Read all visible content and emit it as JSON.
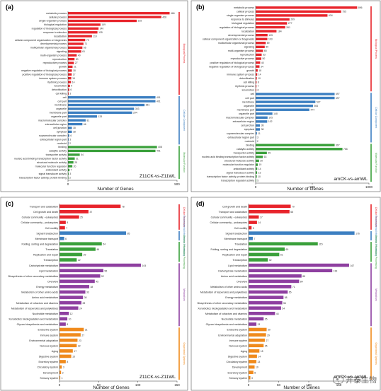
{
  "chart_data": [
    {
      "type": "bar",
      "orientation": "horizontal",
      "panel_label": "(a)",
      "comparison": "Z11CK-vs-Z11WL",
      "xlabel": "Number of Genes",
      "xlim": [
        0,
        500
      ],
      "xticks": [
        0,
        500
      ],
      "groups": [
        {
          "name": "Biological Process",
          "color": "#e8242b",
          "categories": [
            "metabolic process",
            "cellular process",
            "single-organism process",
            "biological regulation",
            "regulation of biological process",
            "response to stimulus",
            "localization",
            "cellular component organization or biogenesis",
            "developmental process",
            "multicellular organismal process",
            "signaling",
            "multi-organism process",
            "reproduction",
            "reproductive process",
            "growth",
            "negative regulation of biological process",
            "positive regulation of biological process",
            "immune system process",
            "rhythmic process",
            "locomotion",
            "detoxification",
            "cell killing"
          ],
          "values": [
            466,
            428,
            315,
            149,
            140,
            135,
            110,
            79,
            71,
            66,
            61,
            40,
            30,
            27,
            21,
            18,
            17,
            15,
            14,
            9,
            6,
            3
          ]
        },
        {
          "name": "Cellular Component",
          "color": "#3c7fc1",
          "categories": [
            "cell",
            "cell part",
            "membrane",
            "organelle",
            "membrane part",
            "organelle part",
            "macromolecular complex",
            "extracellular region",
            "cell junction",
            "symplast",
            "supramolecular complex",
            "extracellular region part",
            "nucleoid"
          ],
          "values": [
            401,
            401,
            351,
            303,
            294,
            133,
            81,
            66,
            18,
            18,
            6,
            3,
            2
          ]
        },
        {
          "name": "Molecular Function",
          "color": "#3aa03b",
          "categories": [
            "binding",
            "catalytic activity",
            "transporter activity",
            "nucleic acid binding transcription factor activity",
            "structural molecule activity",
            "molecular function regulator",
            "antioxidant activity",
            "signal transducer activity",
            "transcription factor activity, protein binding"
          ],
          "values": [
            408,
            401,
            54,
            31,
            25,
            20,
            7,
            3,
            2
          ]
        }
      ]
    },
    {
      "type": "bar",
      "orientation": "horizontal",
      "panel_label": "(b)",
      "comparison": "amCK-vs-amWL",
      "xlabel": "Number of Genes",
      "xlim": [
        0,
        1000
      ],
      "xticks": [
        0,
        500,
        1000
      ],
      "groups": [
        {
          "name": "Biological Process",
          "color": "#e8242b",
          "categories": [
            "metabolic process",
            "cellular process",
            "single-organism process",
            "response to stimulus",
            "biological regulation",
            "regulation of biological process",
            "localization",
            "developmental process",
            "cellular component organization or biogenesis",
            "multicellular organismal process",
            "signaling",
            "multi-organism process",
            "reproduction",
            "reproductive process",
            "positive regulation of biological process",
            "negative regulation of biological process",
            "growth",
            "immune system process",
            "detoxification",
            "cell killing",
            "rhythmic process",
            "locomotion"
          ],
          "values": [
            896,
            755,
            634,
            299,
            277,
            261,
            184,
            105,
            103,
            89,
            80,
            65,
            53,
            50,
            40,
            34,
            18,
            14,
            10,
            8,
            7,
            6
          ]
        },
        {
          "name": "Cellular Component",
          "color": "#3c7fc1",
          "categories": [
            "cell",
            "cell part",
            "membrane",
            "organelle",
            "membrane part",
            "organelle part",
            "macromolecular complex",
            "extracellular region",
            "cell junction",
            "symplast",
            "supramolecular complex",
            "extracellular region part",
            "nucleoid"
          ],
          "values": [
            697,
            697,
            527,
            506,
            474,
            148,
            105,
            102,
            38,
            38,
            11,
            3,
            2
          ]
        },
        {
          "name": "Molecular Function",
          "color": "#3aa03b",
          "categories": [
            "binding",
            "catalytic activity",
            "transporter activity",
            "nucleic acid binding transcription factor activity",
            "structural molecule activity",
            "molecular function regulator",
            "antioxidant activity",
            "signal transducer activity",
            "transcription factor activity, protein binding",
            "transcription regulator activity"
          ],
          "values": [
            697,
            766,
            99,
            63,
            30,
            19,
            14,
            13,
            10,
            5
          ]
        }
      ]
    },
    {
      "type": "bar",
      "orientation": "horizontal",
      "panel_label": "(c)",
      "comparison": "Z11CK-vs-Z11WL",
      "xlabel": "Number of Genes",
      "xlim": [
        0,
        150
      ],
      "xticks": [
        0,
        50,
        100,
        150
      ],
      "groups": [
        {
          "name": "Cellular Processes",
          "color": "#e8242b",
          "categories": [
            "Transport and catabolism",
            "Cell growth and death",
            "Cellular community - eukaryotes",
            "Cellular community - prokaryotes",
            "Cell motility"
          ],
          "values": [
            78,
            37,
            25,
            8,
            7
          ]
        },
        {
          "name": "Environmental Information Processing",
          "color": "#3c7fc1",
          "categories": [
            "Signal transduction",
            "Membrane transport"
          ],
          "values": [
            85,
            6
          ]
        },
        {
          "name": "Genetic Information Processing",
          "color": "#3aa03b",
          "categories": [
            "Folding, sorting and degradation",
            "Translation",
            "Replication and repair",
            "Transcription"
          ],
          "values": [
            54,
            46,
            29,
            22
          ]
        },
        {
          "name": "Metabolism",
          "color": "#8e3fa0",
          "categories": [
            "Carbohydrate metabolism",
            "Lipid metabolism",
            "Biosynthesis of other secondary metabolites",
            "Overview",
            "Energy metabolism",
            "Metabolism of other amino acids",
            "Amino acid metabolism",
            "Metabolism of cofactors and vitamins",
            "Metabolism of terpenoids and polyketides",
            "Nucleotide metabolism",
            "Xenobiotics biodegradation and metabolism",
            "Glycan biosynthesis and metabolism"
          ],
          "values": [
            104,
            56,
            52,
            45,
            38,
            33,
            30,
            28,
            24,
            12,
            10,
            8
          ]
        },
        {
          "name": "Organismal Systems",
          "color": "#f08a1c",
          "categories": [
            "Endocrine system",
            "Immune system",
            "Environmental adaptation",
            "Nervous system",
            "Aging",
            "Digestive system",
            "Excretory system",
            "Circulatory system",
            "Development",
            "Sensory system"
          ],
          "values": [
            31,
            27,
            23,
            22,
            17,
            15,
            8,
            3,
            2,
            1
          ]
        }
      ]
    },
    {
      "type": "bar",
      "orientation": "horizontal",
      "panel_label": "(d)",
      "comparison": "amCK-vs-amWL",
      "xlabel": "Number of Genes",
      "xlim": [
        0,
        200
      ],
      "xticks": [
        0,
        50,
        100,
        150
      ],
      "groups": [
        {
          "name": "Cellular Processes",
          "color": "#e8242b",
          "categories": [
            "Cell growth and death",
            "Transport and catabolism",
            "Cellular community - eukaryotes",
            "Cellular community - prokaryotes",
            "Cell motility"
          ],
          "values": [
            70,
            68,
            17,
            14,
            5
          ]
        },
        {
          "name": "Environmental Information Processing",
          "color": "#3c7fc1",
          "categories": [
            "Signal transduction",
            "Membrane transport"
          ],
          "values": [
            176,
            7
          ]
        },
        {
          "name": "Genetic Information Processing",
          "color": "#3aa03b",
          "categories": [
            "Translation",
            "Folding, sorting and degradation",
            "Replication and repair",
            "Transcription"
          ],
          "values": [
            115,
            60,
            51,
            32
          ]
        },
        {
          "name": "Metabolism",
          "color": "#8e3fa0",
          "categories": [
            "Lipid metabolism",
            "Carbohydrate metabolism",
            "Amino acid metabolism",
            "Overview",
            "Metabolism of other amino acids",
            "Metabolism of terpenoids and polyketides",
            "Energy metabolism",
            "Biosynthesis of other secondary metabolites",
            "Xenobiotics biodegradation and metabolism",
            "Metabolism of cofactors and vitamins",
            "Nucleotide metabolism",
            "Glycan biosynthesis and metabolism"
          ],
          "values": [
            167,
            139,
            88,
            84,
            71,
            65,
            58,
            56,
            54,
            44,
            25,
            13
          ]
        },
        {
          "name": "Organismal Systems",
          "color": "#f08a1c",
          "categories": [
            "Endocrine system",
            "Environmental adaptation",
            "Immune system",
            "Nervous system",
            "Aging",
            "Digestive system",
            "Circulatory system",
            "Development",
            "Excretory system",
            "Sensory system"
          ],
          "values": [
            30,
            29,
            27,
            25,
            18,
            14,
            13,
            10,
            8,
            3
          ]
        }
      ]
    }
  ],
  "watermark": {
    "text": "开泰生物",
    "icon": "chat-bubble-icon"
  }
}
